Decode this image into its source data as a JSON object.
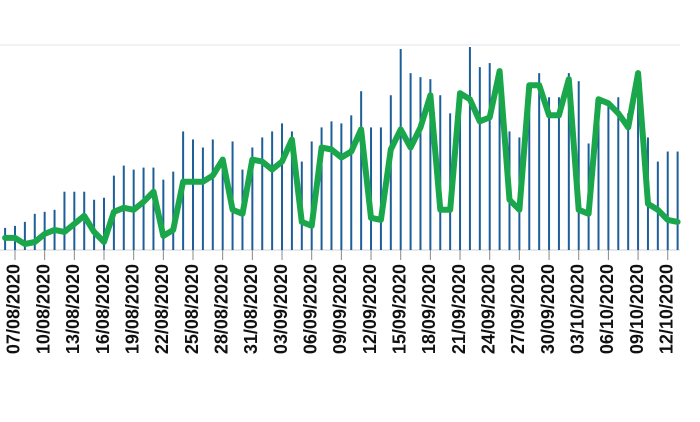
{
  "chart_data": {
    "type": "bar",
    "categories": [
      null,
      "07/08/2020",
      null,
      null,
      "10/08/2020",
      null,
      null,
      "13/08/2020",
      null,
      null,
      "16/08/2020",
      null,
      null,
      "19/08/2020",
      null,
      null,
      "22/08/2020",
      null,
      null,
      "25/08/2020",
      null,
      null,
      "28/08/2020",
      null,
      null,
      "31/08/2020",
      null,
      null,
      "03/09/2020",
      null,
      null,
      "06/09/2020",
      null,
      null,
      "09/09/2020",
      null,
      null,
      "12/09/2020",
      null,
      null,
      "15/09/2020",
      null,
      null,
      "18/09/2020",
      null,
      null,
      "21/09/2020",
      null,
      null,
      "24/09/2020",
      null,
      null,
      "27/09/2020",
      null,
      null,
      "30/09/2020",
      null,
      null,
      "03/10/2020",
      null,
      null,
      "06/10/2020",
      null,
      null,
      "09/10/2020",
      null,
      null,
      "12/10/2020",
      null
    ],
    "series": [
      {
        "type": "bar",
        "color": "#1f5f99",
        "values": [
          11,
          12,
          14,
          18,
          19,
          20,
          29,
          29,
          29,
          25,
          26,
          37,
          42,
          40,
          41,
          41,
          35,
          39,
          59,
          55,
          51,
          55,
          46,
          54,
          40,
          51,
          56,
          59,
          63,
          59,
          44,
          54,
          61,
          64,
          63,
          67,
          79,
          61,
          61,
          77,
          100,
          88,
          86,
          85,
          77,
          68,
          78,
          101,
          91,
          93,
          83,
          59,
          56,
          80,
          88,
          76,
          76,
          88,
          84,
          53,
          66,
          73,
          76,
          68,
          85,
          56,
          44,
          49,
          49
        ]
      },
      {
        "type": "line",
        "color": "#1aa64a",
        "values": [
          6,
          6,
          3,
          4,
          8,
          10,
          9,
          13,
          17,
          9,
          4,
          19,
          21,
          20,
          24,
          29,
          7,
          10,
          34,
          34,
          34,
          37,
          45,
          20,
          18,
          45,
          44,
          40,
          44,
          55,
          14,
          12,
          51,
          50,
          46,
          49,
          60,
          16,
          15,
          50,
          60,
          51,
          61,
          77,
          20,
          20,
          78,
          75,
          64,
          66,
          89,
          25,
          20,
          82,
          82,
          67,
          67,
          85,
          20,
          18,
          75,
          73,
          68,
          61,
          88,
          23,
          20,
          15,
          14
        ]
      }
    ],
    "ylim": [
      0,
      102
    ]
  }
}
